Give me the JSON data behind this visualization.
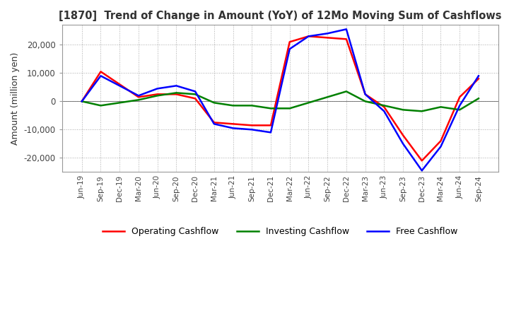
{
  "title": "[1870]  Trend of Change in Amount (YoY) of 12Mo Moving Sum of Cashflows",
  "ylabel": "Amount (million yen)",
  "xlabels": [
    "Jun-19",
    "Sep-19",
    "Dec-19",
    "Mar-20",
    "Jun-20",
    "Sep-20",
    "Dec-20",
    "Mar-21",
    "Jun-21",
    "Sep-21",
    "Dec-21",
    "Mar-22",
    "Jun-22",
    "Sep-22",
    "Dec-22",
    "Mar-23",
    "Jun-23",
    "Sep-23",
    "Dec-23",
    "Mar-24",
    "Jun-24",
    "Sep-24"
  ],
  "operating": [
    0,
    10500,
    6000,
    1500,
    2500,
    2500,
    1000,
    -7500,
    -8000,
    -8500,
    -8500,
    21000,
    23000,
    22500,
    22000,
    2500,
    -2000,
    -12000,
    -21000,
    -14000,
    1500,
    8000
  ],
  "investing": [
    0,
    -1500,
    -500,
    500,
    2000,
    3000,
    2500,
    -500,
    -1500,
    -1500,
    -2500,
    -2500,
    -500,
    1500,
    3500,
    0,
    -1500,
    -3000,
    -3500,
    -2000,
    -3000,
    1000
  ],
  "free": [
    0,
    9000,
    5500,
    2000,
    4500,
    5500,
    3500,
    -8000,
    -9500,
    -10000,
    -11000,
    18500,
    23000,
    24000,
    25500,
    2500,
    -3500,
    -15000,
    -24500,
    -16000,
    -1500,
    9000
  ],
  "operating_color": "#ff0000",
  "investing_color": "#008000",
  "free_color": "#0000ff",
  "ylim": [
    -25000,
    27000
  ],
  "yticks": [
    -20000,
    -10000,
    0,
    10000,
    20000
  ],
  "background_color": "#ffffff",
  "grid_color": "#aaaaaa"
}
